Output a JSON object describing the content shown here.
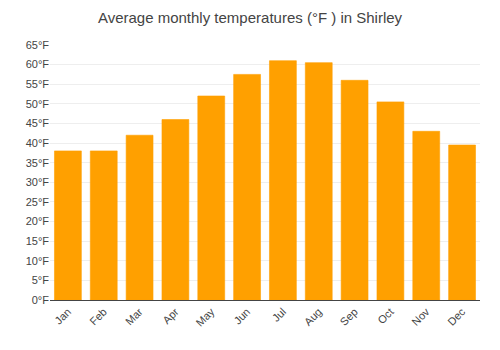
{
  "chart_data": {
    "type": "bar",
    "title": "Average monthly temperatures (°F ) in Shirley",
    "categories": [
      "Jan",
      "Feb",
      "Mar",
      "Apr",
      "May",
      "Jun",
      "Jul",
      "Aug",
      "Sep",
      "Oct",
      "Nov",
      "Dec"
    ],
    "values": [
      38,
      38,
      42,
      46,
      52,
      57.5,
      61,
      60.5,
      56,
      50.5,
      43,
      39.5
    ],
    "color": "#FFA000",
    "ylim": [
      0,
      65
    ],
    "yticks": [
      {
        "value": 0,
        "label": "0°F"
      },
      {
        "value": 5,
        "label": "5°F"
      },
      {
        "value": 10,
        "label": "10°F"
      },
      {
        "value": 15,
        "label": "15°F"
      },
      {
        "value": 20,
        "label": "20°F"
      },
      {
        "value": 25,
        "label": "25°F"
      },
      {
        "value": 30,
        "label": "30°F"
      },
      {
        "value": 35,
        "label": "35°F"
      },
      {
        "value": 40,
        "label": "40°F"
      },
      {
        "value": 45,
        "label": "45°F"
      },
      {
        "value": 50,
        "label": "50°F"
      },
      {
        "value": 55,
        "label": "55°F"
      },
      {
        "value": 60,
        "label": "60°F"
      },
      {
        "value": 65,
        "label": "65°F"
      }
    ],
    "grid": true
  }
}
